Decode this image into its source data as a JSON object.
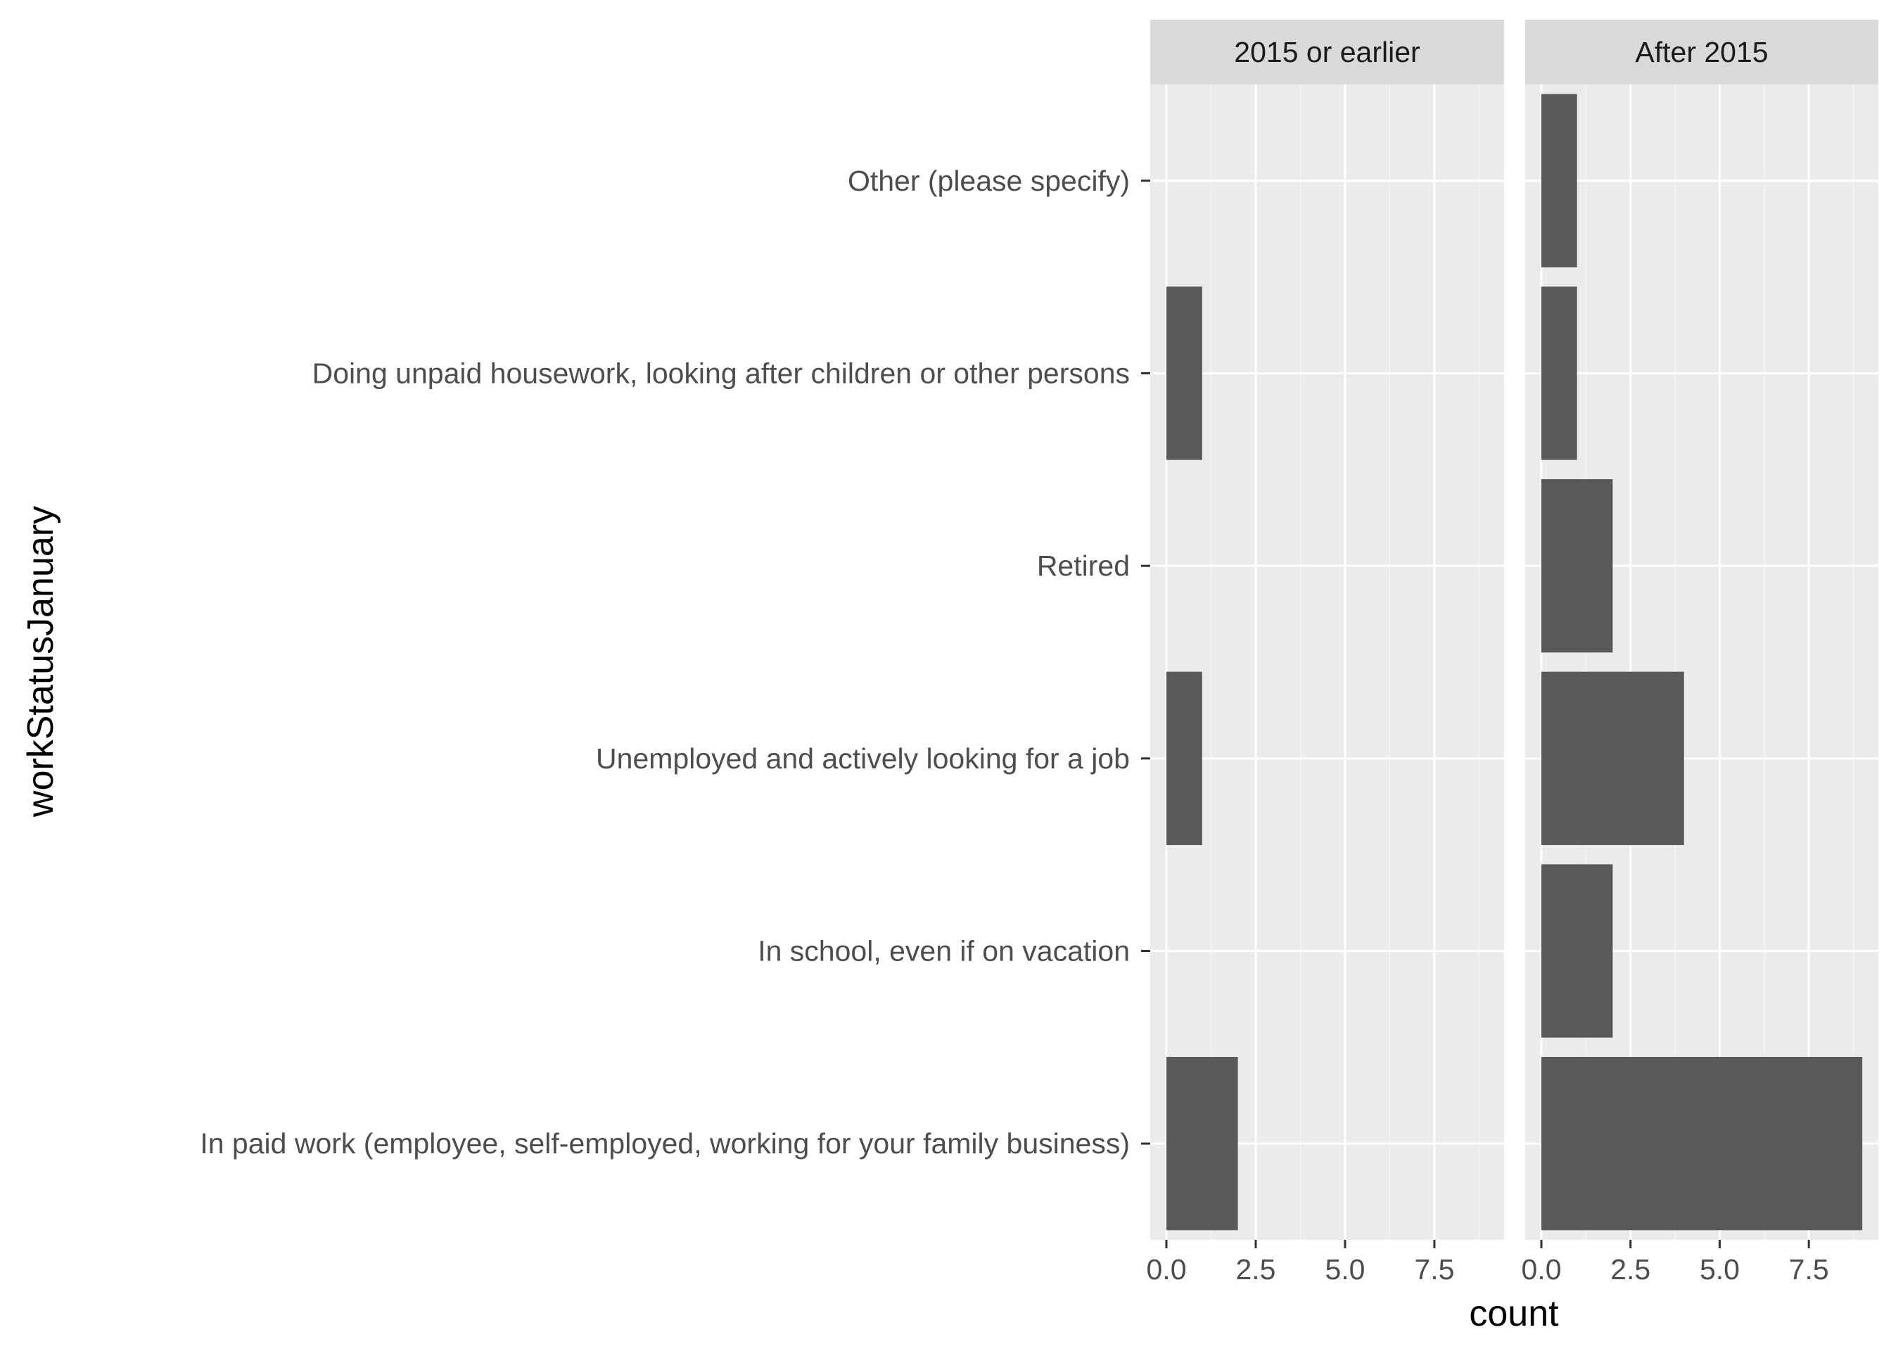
{
  "chart_data": {
    "type": "bar",
    "orientation": "horizontal",
    "facet_layout": "side-by-side panels",
    "grid": true,
    "legend": "none",
    "xlabel": "count",
    "ylabel": "workStatusJanuary",
    "xlim": [
      0,
      9
    ],
    "xticks": [
      "0.0",
      "2.5",
      "5.0",
      "7.5"
    ],
    "categories": [
      "Other (please specify)",
      "Doing unpaid housework, looking after children or other persons",
      "Retired",
      "Unemployed and actively looking for a job",
      "In school, even if on vacation",
      "In paid work (employee, self-employed, working for your family business)"
    ],
    "panels": [
      {
        "name": "2015 or earlier",
        "values": [
          0,
          1,
          0,
          1,
          0,
          2
        ]
      },
      {
        "name": "After 2015",
        "values": [
          1,
          1,
          2,
          4,
          2,
          9
        ]
      }
    ],
    "colors": {
      "bar": "#595959",
      "panel_background": "#ebebeb",
      "strip_background": "#d9d9d9",
      "grid_major": "#ffffff",
      "grid_minor": "#f5f5f5"
    }
  }
}
